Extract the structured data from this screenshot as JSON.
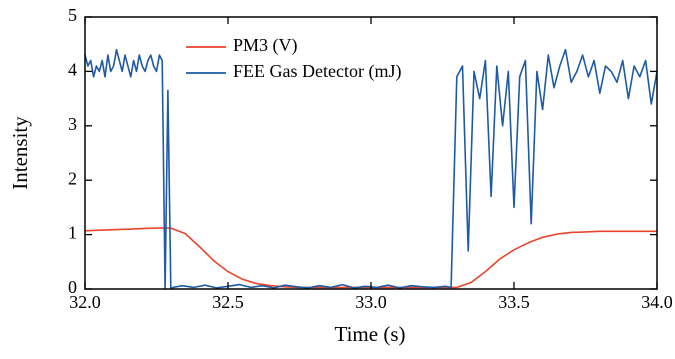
{
  "chart_data": {
    "type": "line",
    "xlabel": "Time (s)",
    "ylabel": "Intensity",
    "xlim": [
      32.0,
      34.0
    ],
    "xticks": [
      {
        "value": 32.0,
        "label": "32.0"
      },
      32.5,
      {
        "value": 33.0,
        "label": "33.0"
      },
      33.5,
      {
        "value": 34.0,
        "label": "34.0"
      }
    ],
    "ylim": [
      0,
      5
    ],
    "yticks": [
      0,
      1,
      2,
      3,
      4,
      5
    ],
    "legend": "top",
    "series": [
      {
        "name": "PM3 (V)",
        "color": "#e8452c",
        "x": [
          32.0,
          32.05,
          32.1,
          32.15,
          32.2,
          32.25,
          32.3,
          32.35,
          32.4,
          32.45,
          32.5,
          32.55,
          32.6,
          32.65,
          32.7,
          32.75,
          32.8,
          32.85,
          32.9,
          32.95,
          33.0,
          33.05,
          33.1,
          33.15,
          33.2,
          33.25,
          33.3,
          33.35,
          33.4,
          33.45,
          33.5,
          33.55,
          33.6,
          33.65,
          33.7,
          33.75,
          33.8,
          33.85,
          33.9,
          33.95,
          34.0
        ],
        "values": [
          1.07,
          1.08,
          1.09,
          1.1,
          1.11,
          1.12,
          1.12,
          1.02,
          0.78,
          0.52,
          0.32,
          0.18,
          0.1,
          0.06,
          0.04,
          0.03,
          0.03,
          0.03,
          0.03,
          0.03,
          0.03,
          0.03,
          0.03,
          0.03,
          0.03,
          0.03,
          0.03,
          0.12,
          0.32,
          0.55,
          0.72,
          0.85,
          0.95,
          1.01,
          1.04,
          1.05,
          1.06,
          1.06,
          1.06,
          1.06,
          1.06
        ]
      },
      {
        "name": "FEE Gas Detector (mJ)",
        "color": "#1f5aa6",
        "x": [
          32.0,
          32.01,
          32.02,
          32.03,
          32.04,
          32.05,
          32.06,
          32.07,
          32.08,
          32.09,
          32.1,
          32.11,
          32.12,
          32.13,
          32.14,
          32.15,
          32.16,
          32.17,
          32.18,
          32.19,
          32.2,
          32.21,
          32.22,
          32.23,
          32.24,
          32.25,
          32.26,
          32.27,
          32.28,
          32.29,
          32.3,
          32.34,
          32.38,
          32.42,
          32.46,
          32.5,
          32.54,
          32.58,
          32.62,
          32.66,
          32.7,
          32.74,
          32.78,
          32.82,
          32.86,
          32.9,
          32.94,
          32.98,
          33.02,
          33.06,
          33.1,
          33.14,
          33.18,
          33.22,
          33.26,
          33.28,
          33.3,
          33.32,
          33.34,
          33.36,
          33.38,
          33.4,
          33.42,
          33.44,
          33.46,
          33.48,
          33.5,
          33.52,
          33.54,
          33.56,
          33.58,
          33.6,
          33.62,
          33.64,
          33.66,
          33.68,
          33.7,
          33.72,
          33.74,
          33.76,
          33.78,
          33.8,
          33.82,
          33.84,
          33.86,
          33.88,
          33.9,
          33.92,
          33.94,
          33.96,
          33.98,
          34.0
        ],
        "values": [
          4.3,
          4.1,
          4.2,
          3.9,
          4.1,
          4.0,
          4.2,
          3.9,
          4.3,
          4.0,
          4.1,
          4.4,
          4.2,
          4.0,
          4.3,
          4.1,
          3.9,
          4.2,
          4.0,
          4.3,
          4.1,
          4.0,
          4.2,
          4.3,
          4.1,
          4.0,
          4.3,
          4.2,
          0.0,
          3.65,
          0.02,
          0.06,
          0.03,
          0.07,
          0.02,
          0.05,
          0.08,
          0.03,
          0.06,
          0.02,
          0.07,
          0.04,
          0.02,
          0.06,
          0.03,
          0.08,
          0.02,
          0.05,
          0.03,
          0.07,
          0.02,
          0.06,
          0.04,
          0.03,
          0.05,
          0.03,
          3.9,
          4.1,
          0.7,
          4.0,
          3.5,
          4.2,
          1.7,
          4.1,
          3.0,
          4.0,
          1.5,
          3.9,
          4.2,
          1.2,
          4.0,
          3.3,
          4.3,
          3.7,
          4.1,
          4.4,
          3.8,
          4.0,
          4.3,
          3.9,
          4.2,
          3.6,
          4.1,
          4.0,
          3.8,
          4.2,
          3.5,
          4.1,
          3.9,
          4.2,
          3.4,
          4.0
        ]
      }
    ]
  }
}
